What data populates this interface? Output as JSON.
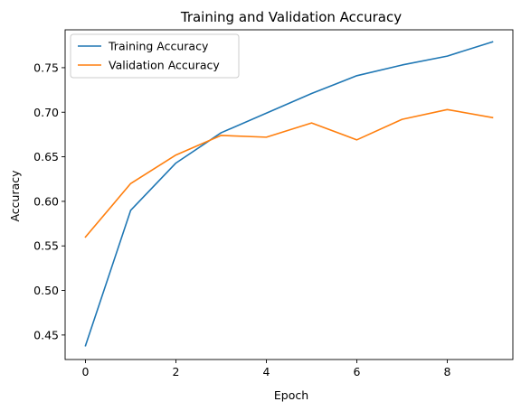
{
  "chart_data": {
    "type": "line",
    "title": "Training and Validation Accuracy",
    "xlabel": "Epoch",
    "ylabel": "Accuracy",
    "x": [
      0,
      1,
      2,
      3,
      4,
      5,
      6,
      7,
      8,
      9
    ],
    "xlim": [
      -0.45,
      9.45
    ],
    "ylim": [
      0.4225,
      0.7925
    ],
    "xticks": [
      0,
      2,
      4,
      6,
      8
    ],
    "xtick_labels": [
      "0",
      "2",
      "4",
      "6",
      "8"
    ],
    "yticks": [
      0.45,
      0.5,
      0.55,
      0.6,
      0.65,
      0.7,
      0.75
    ],
    "ytick_labels": [
      "0.45",
      "0.50",
      "0.55",
      "0.60",
      "0.65",
      "0.70",
      "0.75"
    ],
    "grid": false,
    "legend_position": "top-left",
    "series": [
      {
        "name": "Training Accuracy",
        "color": "#1f77b4",
        "values": [
          0.438,
          0.59,
          0.643,
          0.677,
          0.699,
          0.721,
          0.741,
          0.753,
          0.763,
          0.779
        ]
      },
      {
        "name": "Validation Accuracy",
        "color": "#ff7f0e",
        "values": [
          0.56,
          0.62,
          0.652,
          0.674,
          0.672,
          0.688,
          0.669,
          0.692,
          0.703,
          0.694
        ]
      }
    ]
  }
}
